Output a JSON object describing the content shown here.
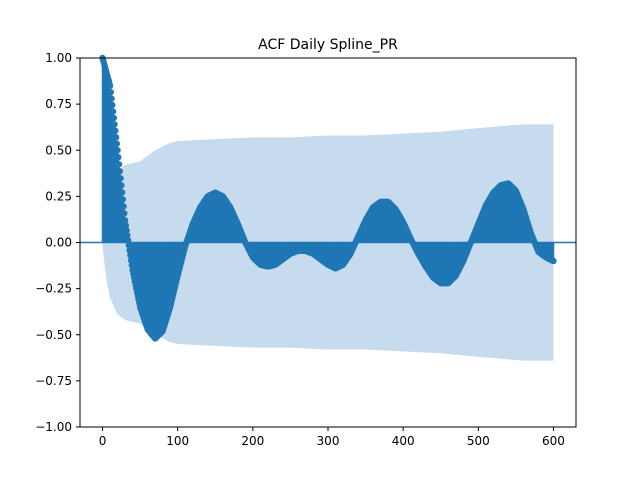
{
  "chart_data": {
    "type": "line",
    "title": "ACF Daily Spline_PR",
    "xlabel": "",
    "ylabel": "",
    "xlim": [
      -30,
      630
    ],
    "ylim": [
      -1.0,
      1.0
    ],
    "x_ticks": [
      0,
      100,
      200,
      300,
      400,
      500,
      600
    ],
    "y_ticks": [
      -1.0,
      -0.75,
      -0.5,
      -0.25,
      0.0,
      0.25,
      0.5,
      0.75,
      1.0
    ],
    "x_tick_labels": [
      "0",
      "100",
      "200",
      "300",
      "400",
      "500",
      "600"
    ],
    "y_tick_labels": [
      "−1.00",
      "−0.75",
      "−0.50",
      "−0.25",
      "0.00",
      "0.25",
      "0.50",
      "0.75",
      "1.00"
    ],
    "grid": false,
    "legend": "none",
    "colors": {
      "acf": "#1f77b4",
      "confidence": "#c6dbee"
    },
    "acf_points": [
      [
        0,
        1.0
      ],
      [
        10,
        0.85
      ],
      [
        20,
        0.5
      ],
      [
        30,
        0.12
      ],
      [
        40,
        -0.15
      ],
      [
        50,
        -0.35
      ],
      [
        60,
        -0.47
      ],
      [
        70,
        -0.52
      ],
      [
        80,
        -0.48
      ],
      [
        90,
        -0.35
      ],
      [
        100,
        -0.18
      ],
      [
        110,
        -0.02
      ],
      [
        120,
        0.1
      ],
      [
        130,
        0.19
      ],
      [
        140,
        0.25
      ],
      [
        150,
        0.27
      ],
      [
        160,
        0.25
      ],
      [
        170,
        0.19
      ],
      [
        180,
        0.1
      ],
      [
        190,
        0.0
      ],
      [
        200,
        -0.08
      ],
      [
        210,
        -0.12
      ],
      [
        220,
        -0.13
      ],
      [
        230,
        -0.12
      ],
      [
        240,
        -0.09
      ],
      [
        250,
        -0.06
      ],
      [
        260,
        -0.045
      ],
      [
        270,
        -0.045
      ],
      [
        280,
        -0.06
      ],
      [
        290,
        -0.09
      ],
      [
        300,
        -0.12
      ],
      [
        310,
        -0.14
      ],
      [
        320,
        -0.12
      ],
      [
        330,
        -0.06
      ],
      [
        340,
        0.03
      ],
      [
        350,
        0.12
      ],
      [
        360,
        0.19
      ],
      [
        370,
        0.22
      ],
      [
        380,
        0.22
      ],
      [
        390,
        0.18
      ],
      [
        400,
        0.11
      ],
      [
        410,
        0.02
      ],
      [
        420,
        -0.06
      ],
      [
        430,
        -0.13
      ],
      [
        440,
        -0.19
      ],
      [
        450,
        -0.22
      ],
      [
        460,
        -0.22
      ],
      [
        470,
        -0.18
      ],
      [
        480,
        -0.1
      ],
      [
        490,
        0.0
      ],
      [
        500,
        0.1
      ],
      [
        510,
        0.2
      ],
      [
        520,
        0.27
      ],
      [
        530,
        0.31
      ],
      [
        540,
        0.32
      ],
      [
        550,
        0.28
      ],
      [
        560,
        0.18
      ],
      [
        570,
        0.05
      ],
      [
        580,
        -0.05
      ],
      [
        590,
        -0.08
      ],
      [
        600,
        -0.1
      ]
    ],
    "confidence_band": [
      [
        0,
        0.02
      ],
      [
        5,
        0.2
      ],
      [
        10,
        0.3
      ],
      [
        20,
        0.39
      ],
      [
        30,
        0.42
      ],
      [
        40,
        0.43
      ],
      [
        50,
        0.44
      ],
      [
        60,
        0.47
      ],
      [
        70,
        0.5
      ],
      [
        80,
        0.52
      ],
      [
        90,
        0.54
      ],
      [
        100,
        0.55
      ],
      [
        150,
        0.56
      ],
      [
        200,
        0.57
      ],
      [
        250,
        0.57
      ],
      [
        300,
        0.58
      ],
      [
        350,
        0.58
      ],
      [
        400,
        0.59
      ],
      [
        450,
        0.6
      ],
      [
        500,
        0.62
      ],
      [
        530,
        0.63
      ],
      [
        560,
        0.64
      ],
      [
        600,
        0.64
      ]
    ]
  }
}
